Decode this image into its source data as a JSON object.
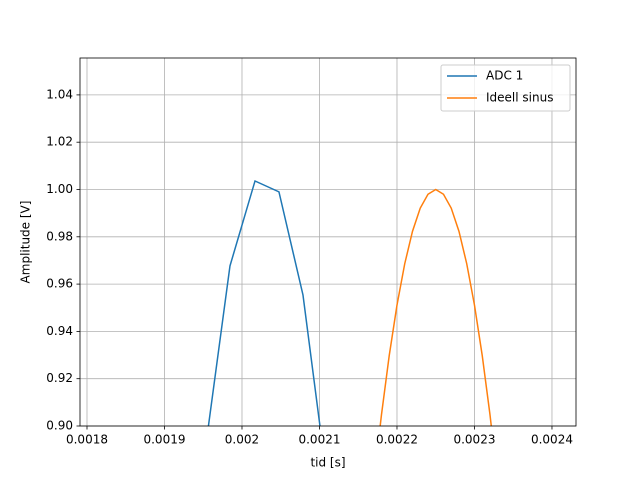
{
  "chart_data": {
    "type": "line",
    "xlabel": "tid [s]",
    "ylabel": "Amplitude [V]",
    "xlim": [
      0.00179097,
      0.002431
    ],
    "ylim": [
      0.9,
      1.0556
    ],
    "xticks": [
      0.0018,
      0.0019,
      0.002,
      0.0021,
      0.0022,
      0.0023,
      0.0024
    ],
    "yticks": [
      {
        "value": 0.9,
        "label": "0.90"
      },
      0.92,
      0.94,
      0.96,
      0.98,
      {
        "value": 1.0,
        "label": "1.00"
      },
      1.02,
      1.04
    ],
    "grid": true,
    "legend": "upper right",
    "series": [
      {
        "name": "ADC 1",
        "color": "#1f77b4",
        "x": [
          0.001953,
          0.0019845,
          0.0020168,
          0.0020477,
          0.0020787,
          0.0021097
        ],
        "values": [
          0.891,
          0.9677,
          1.0036,
          0.999,
          0.9554,
          0.877
        ]
      },
      {
        "name": "Ideell sinus",
        "color": "#ff7f0e",
        "x": [
          0.00217,
          0.00218,
          0.00219,
          0.0022,
          0.00221,
          0.00222,
          0.00223,
          0.00224,
          0.00225,
          0.00226,
          0.00227,
          0.00228,
          0.00229,
          0.0023,
          0.00231,
          0.00232,
          0.00233
        ],
        "values": [
          0.8763,
          0.9048,
          0.9298,
          0.9511,
          0.9686,
          0.9823,
          0.9921,
          0.998,
          1.0,
          0.998,
          0.9921,
          0.9823,
          0.9686,
          0.9511,
          0.9298,
          0.9048,
          0.8763
        ]
      }
    ]
  }
}
